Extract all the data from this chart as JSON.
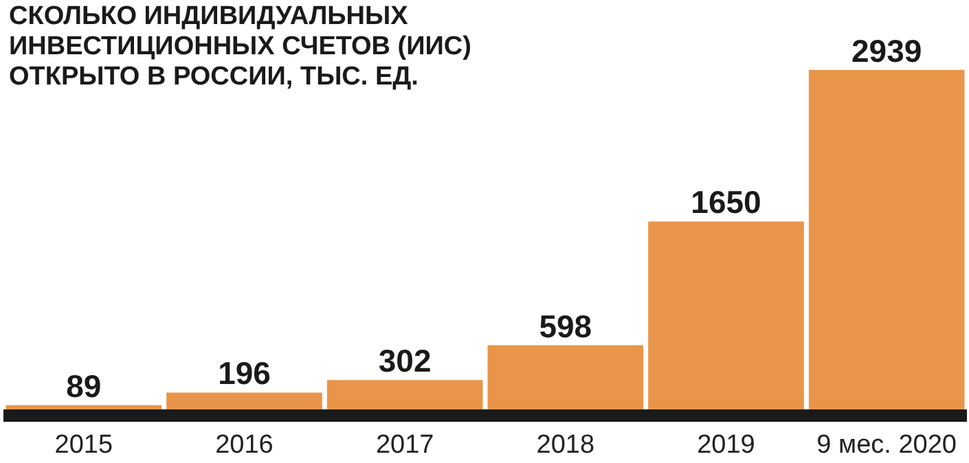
{
  "chart_data": {
    "type": "bar",
    "title": "СКОЛЬКО ИНДИВИДУАЛЬНЫХ ИНВЕСТИЦИОННЫХ СЧЕТОВ (ИИС) ОТКРЫТО В РОССИИ, ТЫС. ЕД.",
    "categories": [
      "2015",
      "2016",
      "2017",
      "2018",
      "2019",
      "9 мес. 2020"
    ],
    "values": [
      89,
      196,
      302,
      598,
      1650,
      2939
    ],
    "color": "#e8954a",
    "data_labels": true,
    "grid": false
  }
}
